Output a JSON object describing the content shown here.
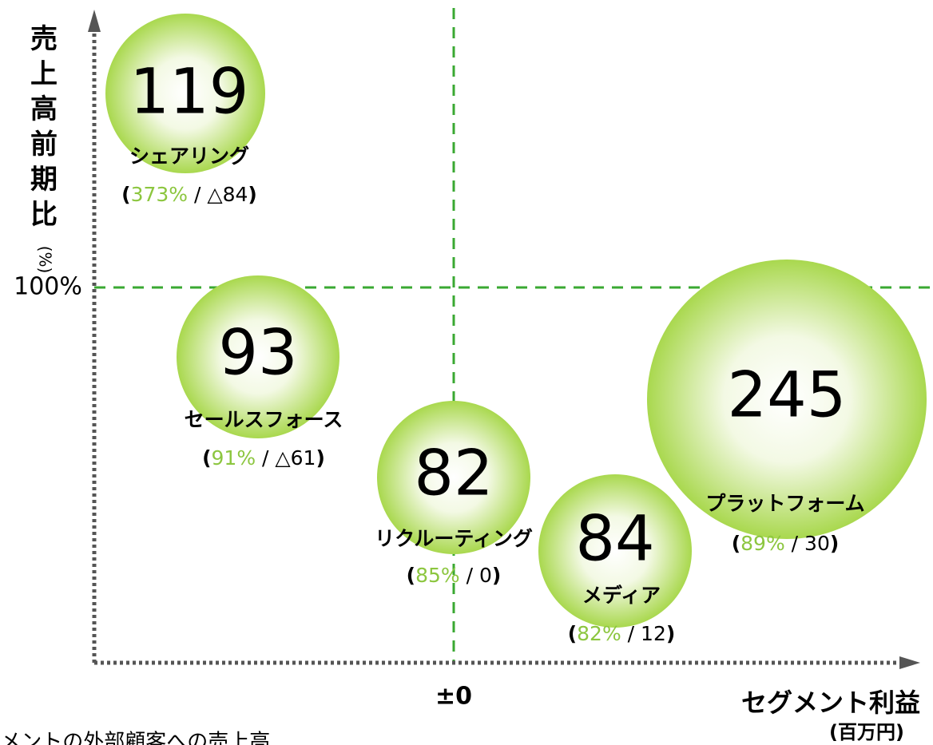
{
  "y_axis": {
    "title": "売上高前期比",
    "unit": "(%)",
    "reference": "100%"
  },
  "x_axis": {
    "title": "セグメント利益",
    "unit": "(百万円)",
    "reference": "±0"
  },
  "punctuation": {
    "open": "(",
    "separator": " / ",
    "close": ")"
  },
  "nodes": [
    {
      "value": "119",
      "name": "シェアリング",
      "growth": "373%",
      "profit": "△84"
    },
    {
      "value": "93",
      "name": "セールスフォース",
      "growth": "91%",
      "profit": "△61"
    },
    {
      "value": "82",
      "name": "リクルーティング",
      "growth": "85%",
      "profit": "0"
    },
    {
      "value": "84",
      "name": "メディア",
      "growth": "82%",
      "profit": "12"
    },
    {
      "value": "245",
      "name": "プラットフォーム",
      "growth": "89%",
      "profit": "30"
    }
  ],
  "footnote": "※○内はセグメントの外部顧客への売上高"
}
